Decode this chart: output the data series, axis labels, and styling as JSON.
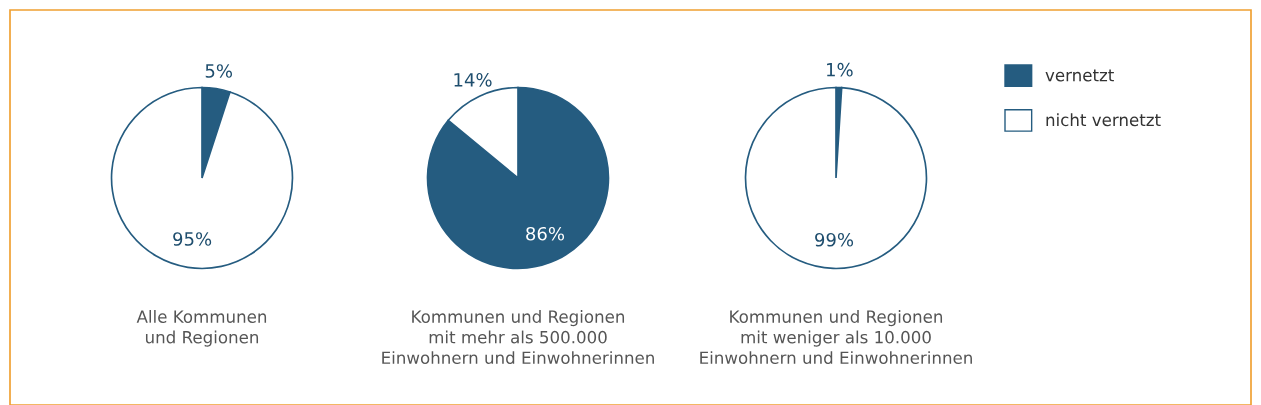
{
  "chart_data": [
    {
      "type": "pie",
      "categories": [
        "vernetzt",
        "nicht vernetzt"
      ],
      "values": [
        5,
        95
      ],
      "colors": [
        "#255c80",
        "#ffffff"
      ],
      "data_labels": true,
      "value_labels": [
        "5%",
        "95%"
      ],
      "xlabel": "Alle Kommunen\nund Regionen",
      "legend": "right"
    },
    {
      "type": "pie",
      "categories": [
        null,
        null
      ],
      "values": [
        86,
        14
      ],
      "colors": [
        "#255c80",
        "#ffffff"
      ],
      "data_labels": true,
      "value_labels": [
        "86%",
        "14%"
      ],
      "xlabel": "Kommunen und Regionen\nmit mehr als 500.000\nEinwohnern und Einwohnerinnen"
    },
    {
      "type": "pie",
      "categories": [
        null,
        null
      ],
      "values": [
        1,
        99
      ],
      "colors": [
        "#255c80",
        "#ffffff"
      ],
      "data_labels": true,
      "value_labels": [
        "1%",
        "99%"
      ],
      "xlabel": "Kommunen und Regionen\nmit weniger als 10.000\nEinwohnern und Einwohnerinnen"
    }
  ]
}
